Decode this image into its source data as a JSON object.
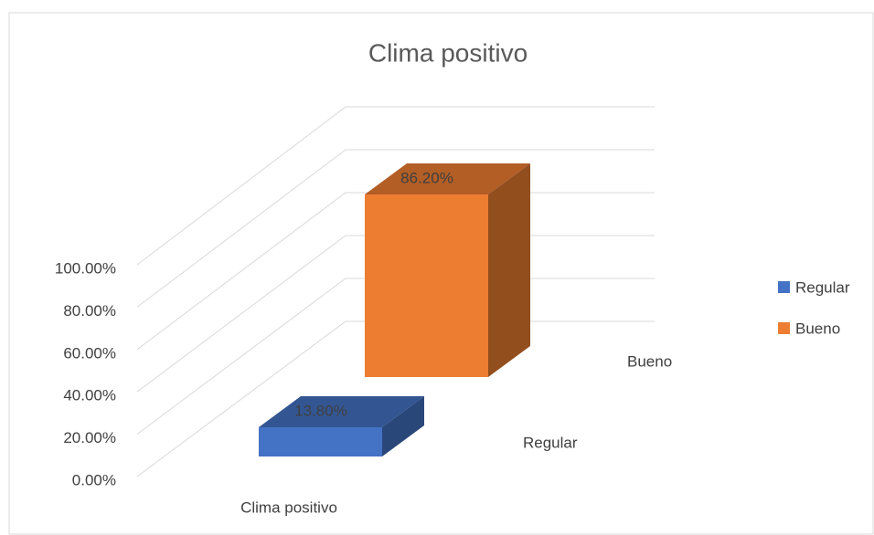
{
  "chart_data": {
    "type": "bar3d",
    "title": "Clima positivo",
    "categories": [
      "Clima positivo"
    ],
    "series": [
      {
        "name": "Regular",
        "color": "#4472c4",
        "values": [
          13.8
        ],
        "value_labels": [
          "13.80%"
        ]
      },
      {
        "name": "Bueno",
        "color": "#ed7d31",
        "values": [
          86.2
        ],
        "value_labels": [
          "86.20%"
        ]
      }
    ],
    "ylim": [
      0,
      100
    ],
    "yticks": [
      {
        "value": 0,
        "label": "0.00%"
      },
      {
        "value": 20,
        "label": "20.00%"
      },
      {
        "value": 40,
        "label": "40.00%"
      },
      {
        "value": 60,
        "label": "60.00%"
      },
      {
        "value": 80,
        "label": "80.00%"
      },
      {
        "value": 100,
        "label": "100.00%"
      }
    ],
    "grid": true,
    "legend": "right"
  }
}
